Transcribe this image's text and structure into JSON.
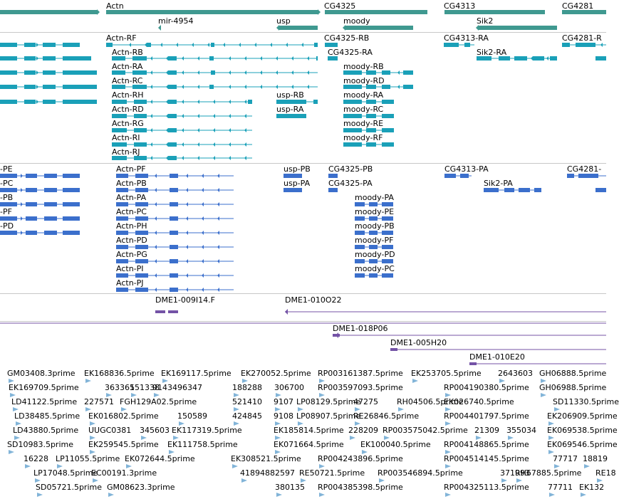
{
  "colors": {
    "gene": "#3f9990",
    "transcript": "#1aa0b8",
    "protein": "#3b6fcc",
    "clone": "#7453a6",
    "est": "#82b4d8",
    "separator": "#c8c8c8"
  },
  "gene_track": {
    "labels": [
      "Actn",
      "mir-4954",
      "usp",
      "CG4325",
      "moody",
      "CG4313",
      "Sik2",
      "CG4281"
    ]
  },
  "transcript_track": {
    "labels": [
      "Actn-RF",
      "Actn-RB",
      "Actn-RA",
      "Actn-RC",
      "Actn-RH",
      "Actn-RD",
      "Actn-RG",
      "Actn-RI",
      "Actn-RJ",
      "usp-RB",
      "usp-RA",
      "CG4325-RB",
      "CG4325-RA",
      "moody-RB",
      "moody-RD",
      "moody-RA",
      "moody-RC",
      "moody-RE",
      "moody-RF",
      "CG4313-RA",
      "Sik2-RA",
      "CG4281-R"
    ]
  },
  "protein_track": {
    "labels": [
      "-PE",
      "-PC",
      "-PB",
      "-PF",
      "-PD",
      "Actn-PF",
      "Actn-PB",
      "Actn-PA",
      "Actn-PC",
      "Actn-PH",
      "Actn-PD",
      "Actn-PG",
      "Actn-PI",
      "Actn-PJ",
      "usp-PB",
      "usp-PA",
      "CG4325-PB",
      "CG4325-PA",
      "moody-PA",
      "moody-PE",
      "moody-PB",
      "moody-PF",
      "moody-PD",
      "moody-PC",
      "CG4313-PA",
      "Sik2-PA",
      "CG4281-"
    ]
  },
  "clone_track_1": {
    "labels": [
      "DME1-009I14.F",
      "DME1-010O22"
    ]
  },
  "clone_track_2": {
    "labels": [
      "DME1-018P06",
      "DME1-005H20",
      "DME1-010E20"
    ]
  },
  "est_track": {
    "labels": [
      "GM03408.3prime",
      "EK168836.5prime",
      "EK169117.5prime",
      "EK270052.5prime",
      "RP003161387.5prime",
      "EK253705.5prime",
      "2643603",
      "GH06888.5prime",
      "EK169709.5prime",
      "363365",
      "151338",
      "9143496347",
      "188288",
      "306700",
      "RP003597093.5prime",
      "RP004190380.5prime",
      "GH06988.5prime",
      "LD41122.5prime",
      "227571",
      "FGH129A02.5prime",
      "521410",
      "9107",
      "LP08129.5prime",
      "47275",
      "RH04506.5prime",
      "EK026740.5prime",
      "SD11330.5prime",
      "LD38485.5prime",
      "EK016802.5prime",
      "150589",
      "424845",
      "9108",
      "LP08907.5prime",
      "RE26846.5prime",
      "RP004401797.5prime",
      "EK206909.5prime",
      "LD43880.5prime",
      "UUGC0381",
      "345603",
      "EK117319.5prime",
      "EK185814.5prime",
      "228209",
      "RP003575042.5prime",
      "21309",
      "355034",
      "EK069538.5prime",
      "SD10983.5prime",
      "EK259545.5prime",
      "EK111758.5prime",
      "EK071664.5prime",
      "EK100040.5prime",
      "RP004148865.5prime",
      "EK069546.5prime",
      "16228",
      "LP11055.5prime",
      "EK072644.5prime",
      "EK308521.5prime",
      "RP004243896.5prime",
      "RP004514145.5prime",
      "77717",
      "18819",
      "LP17048.5prime",
      "EC00191.3prime",
      "41894882597",
      "RE50721.5prime",
      "RP003546894.5prime",
      "371993",
      "RH67885.5prime",
      "RE18",
      "SD05721.5prime",
      "GM08623.3prime",
      "380135",
      "RP004385398.5prime",
      "RP004325113.5prime",
      "77711",
      "EK132"
    ]
  }
}
